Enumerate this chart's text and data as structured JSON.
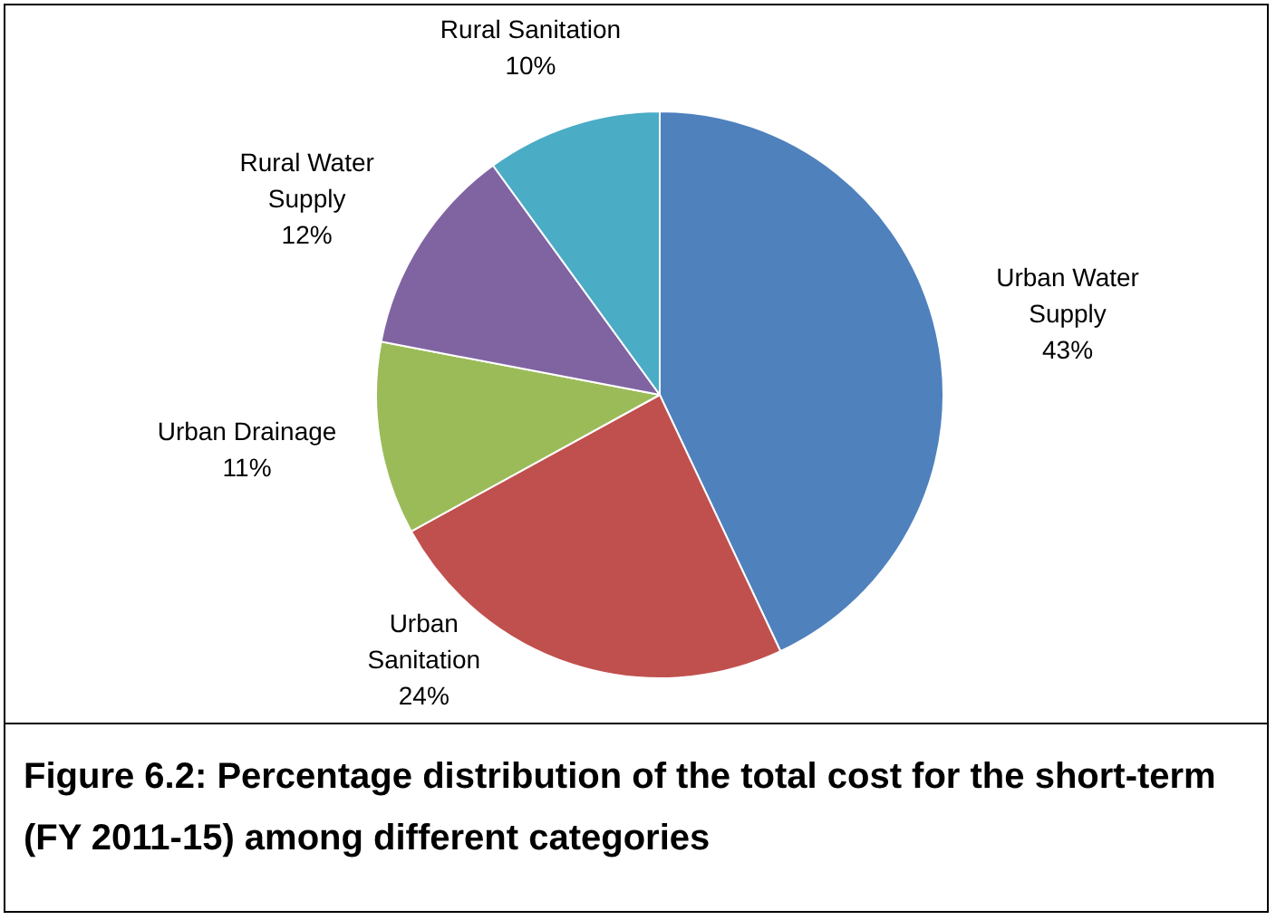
{
  "chart_data": {
    "type": "pie",
    "title": "Figure 6.2: Percentage distribution of the total cost for the short-term (FY 2011-15) among different categories",
    "categories": [
      "Urban Water Supply",
      "Urban Sanitation",
      "Urban Drainage",
      "Rural Water Supply",
      "Rural Sanitation"
    ],
    "values": [
      43,
      24,
      11,
      12,
      10
    ],
    "colors": [
      "#4f81bd",
      "#c0504d",
      "#9bbb59",
      "#8064a2",
      "#4bacc6"
    ],
    "value_labels": [
      "43%",
      "24%",
      "11%",
      "12%",
      "10%"
    ],
    "legend": false
  }
}
